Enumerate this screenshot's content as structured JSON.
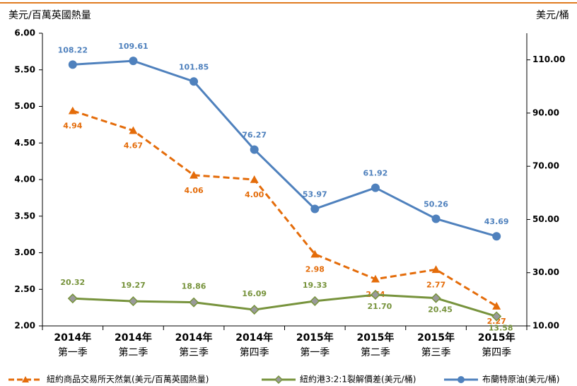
{
  "chart_data": {
    "type": "line",
    "ylabel": "美元/百萬英國熱量",
    "y2label": "美元/桶",
    "categories": [
      [
        "2014年",
        "第一季"
      ],
      [
        "2014年",
        "第二季"
      ],
      [
        "2014年",
        "第三季"
      ],
      [
        "2014年",
        "第四季"
      ],
      [
        "2015年",
        "第一季"
      ],
      [
        "2015年",
        "第二季"
      ],
      [
        "2015年",
        "第三季"
      ],
      [
        "2015年",
        "第四季"
      ]
    ],
    "ylim": [
      2,
      6
    ],
    "yticks": [
      {
        "value": 2,
        "label": "2.00"
      },
      {
        "value": 2.5,
        "label": "2.50"
      },
      {
        "value": 3,
        "label": "3.00"
      },
      {
        "value": 3.5,
        "label": "3.50"
      },
      {
        "value": 4,
        "label": "4.00"
      },
      {
        "value": 4.5,
        "label": "4.50"
      },
      {
        "value": 5,
        "label": "5.00"
      },
      {
        "value": 5.5,
        "label": "5.50"
      },
      {
        "value": 6,
        "label": "6.00"
      }
    ],
    "y2lim": [
      10,
      120
    ],
    "y2ticks": [
      {
        "value": 10,
        "label": "10.00"
      },
      {
        "value": 30,
        "label": "30.00"
      },
      {
        "value": 50,
        "label": "50.00"
      },
      {
        "value": 70,
        "label": "70.00"
      },
      {
        "value": 90,
        "label": "90.00"
      },
      {
        "value": 110,
        "label": "110.00"
      }
    ],
    "series": [
      {
        "name": "紐約商品交易所天然氣(美元/百萬英國熱量)",
        "color": "#e46c0a",
        "axis": "y",
        "marker": "triangle",
        "dashed": true,
        "values": [
          4.94,
          4.67,
          4.06,
          4.0,
          2.98,
          2.64,
          2.77,
          2.27
        ],
        "value_labels": [
          "4.94",
          "4.67",
          "4.06",
          "4.00",
          "2.98",
          "2.64",
          "2.77",
          "2.27"
        ]
      },
      {
        "name": "紐約港3:2:1裂解價差(美元/桶)",
        "color": "#77933c",
        "axis": "y2",
        "marker": "diamond",
        "dashed": false,
        "values": [
          20.32,
          19.27,
          18.86,
          16.09,
          19.33,
          21.7,
          20.45,
          13.58
        ],
        "value_labels": [
          "20.32",
          "19.27",
          "18.86",
          "16.09",
          "19.33",
          "21.70",
          "20.45",
          "13.58"
        ]
      },
      {
        "name": "布蘭特原油(美元/桶)",
        "color": "#4f81bd",
        "axis": "y2",
        "marker": "circle",
        "dashed": false,
        "values": [
          108.22,
          109.61,
          101.85,
          76.27,
          53.97,
          61.92,
          50.26,
          43.69
        ],
        "value_labels": [
          "108.22",
          "109.61",
          "101.85",
          "76.27",
          "53.97",
          "61.92",
          "50.26",
          "43.69"
        ]
      }
    ]
  }
}
